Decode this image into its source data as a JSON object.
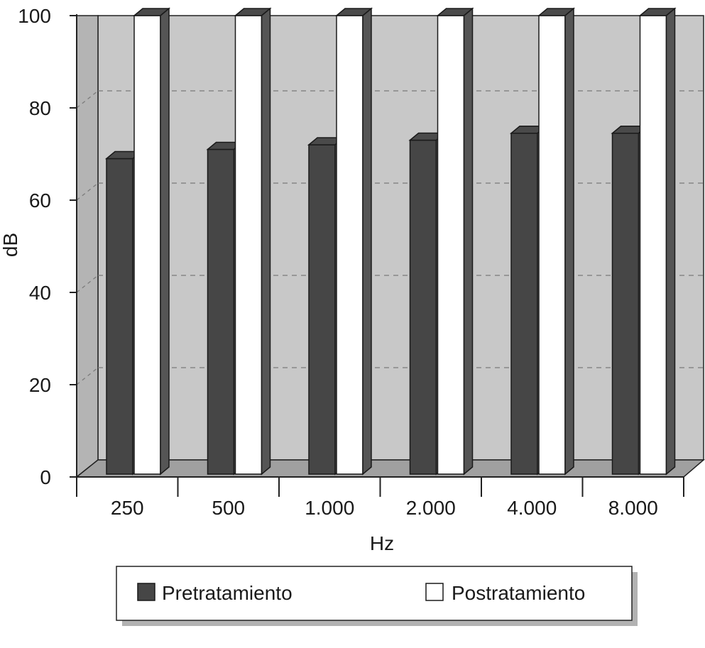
{
  "chart_data": {
    "type": "bar",
    "title": "",
    "xlabel": "Hz",
    "ylabel": "dB",
    "ylim": [
      0,
      100
    ],
    "yticks": [
      0,
      20,
      40,
      60,
      80,
      100
    ],
    "grid": true,
    "legend_position": "bottom",
    "categories": [
      "250",
      "500",
      "1.000",
      "2.000",
      "4.000",
      "8.000"
    ],
    "series": [
      {
        "name": "Pretratamiento",
        "values": [
          69,
          71,
          72,
          73,
          74.5,
          74.5
        ],
        "color": "#464646"
      },
      {
        "name": "Postratamiento",
        "values": [
          100,
          100,
          100,
          100,
          100,
          100
        ],
        "color": "#ffffff"
      }
    ]
  }
}
